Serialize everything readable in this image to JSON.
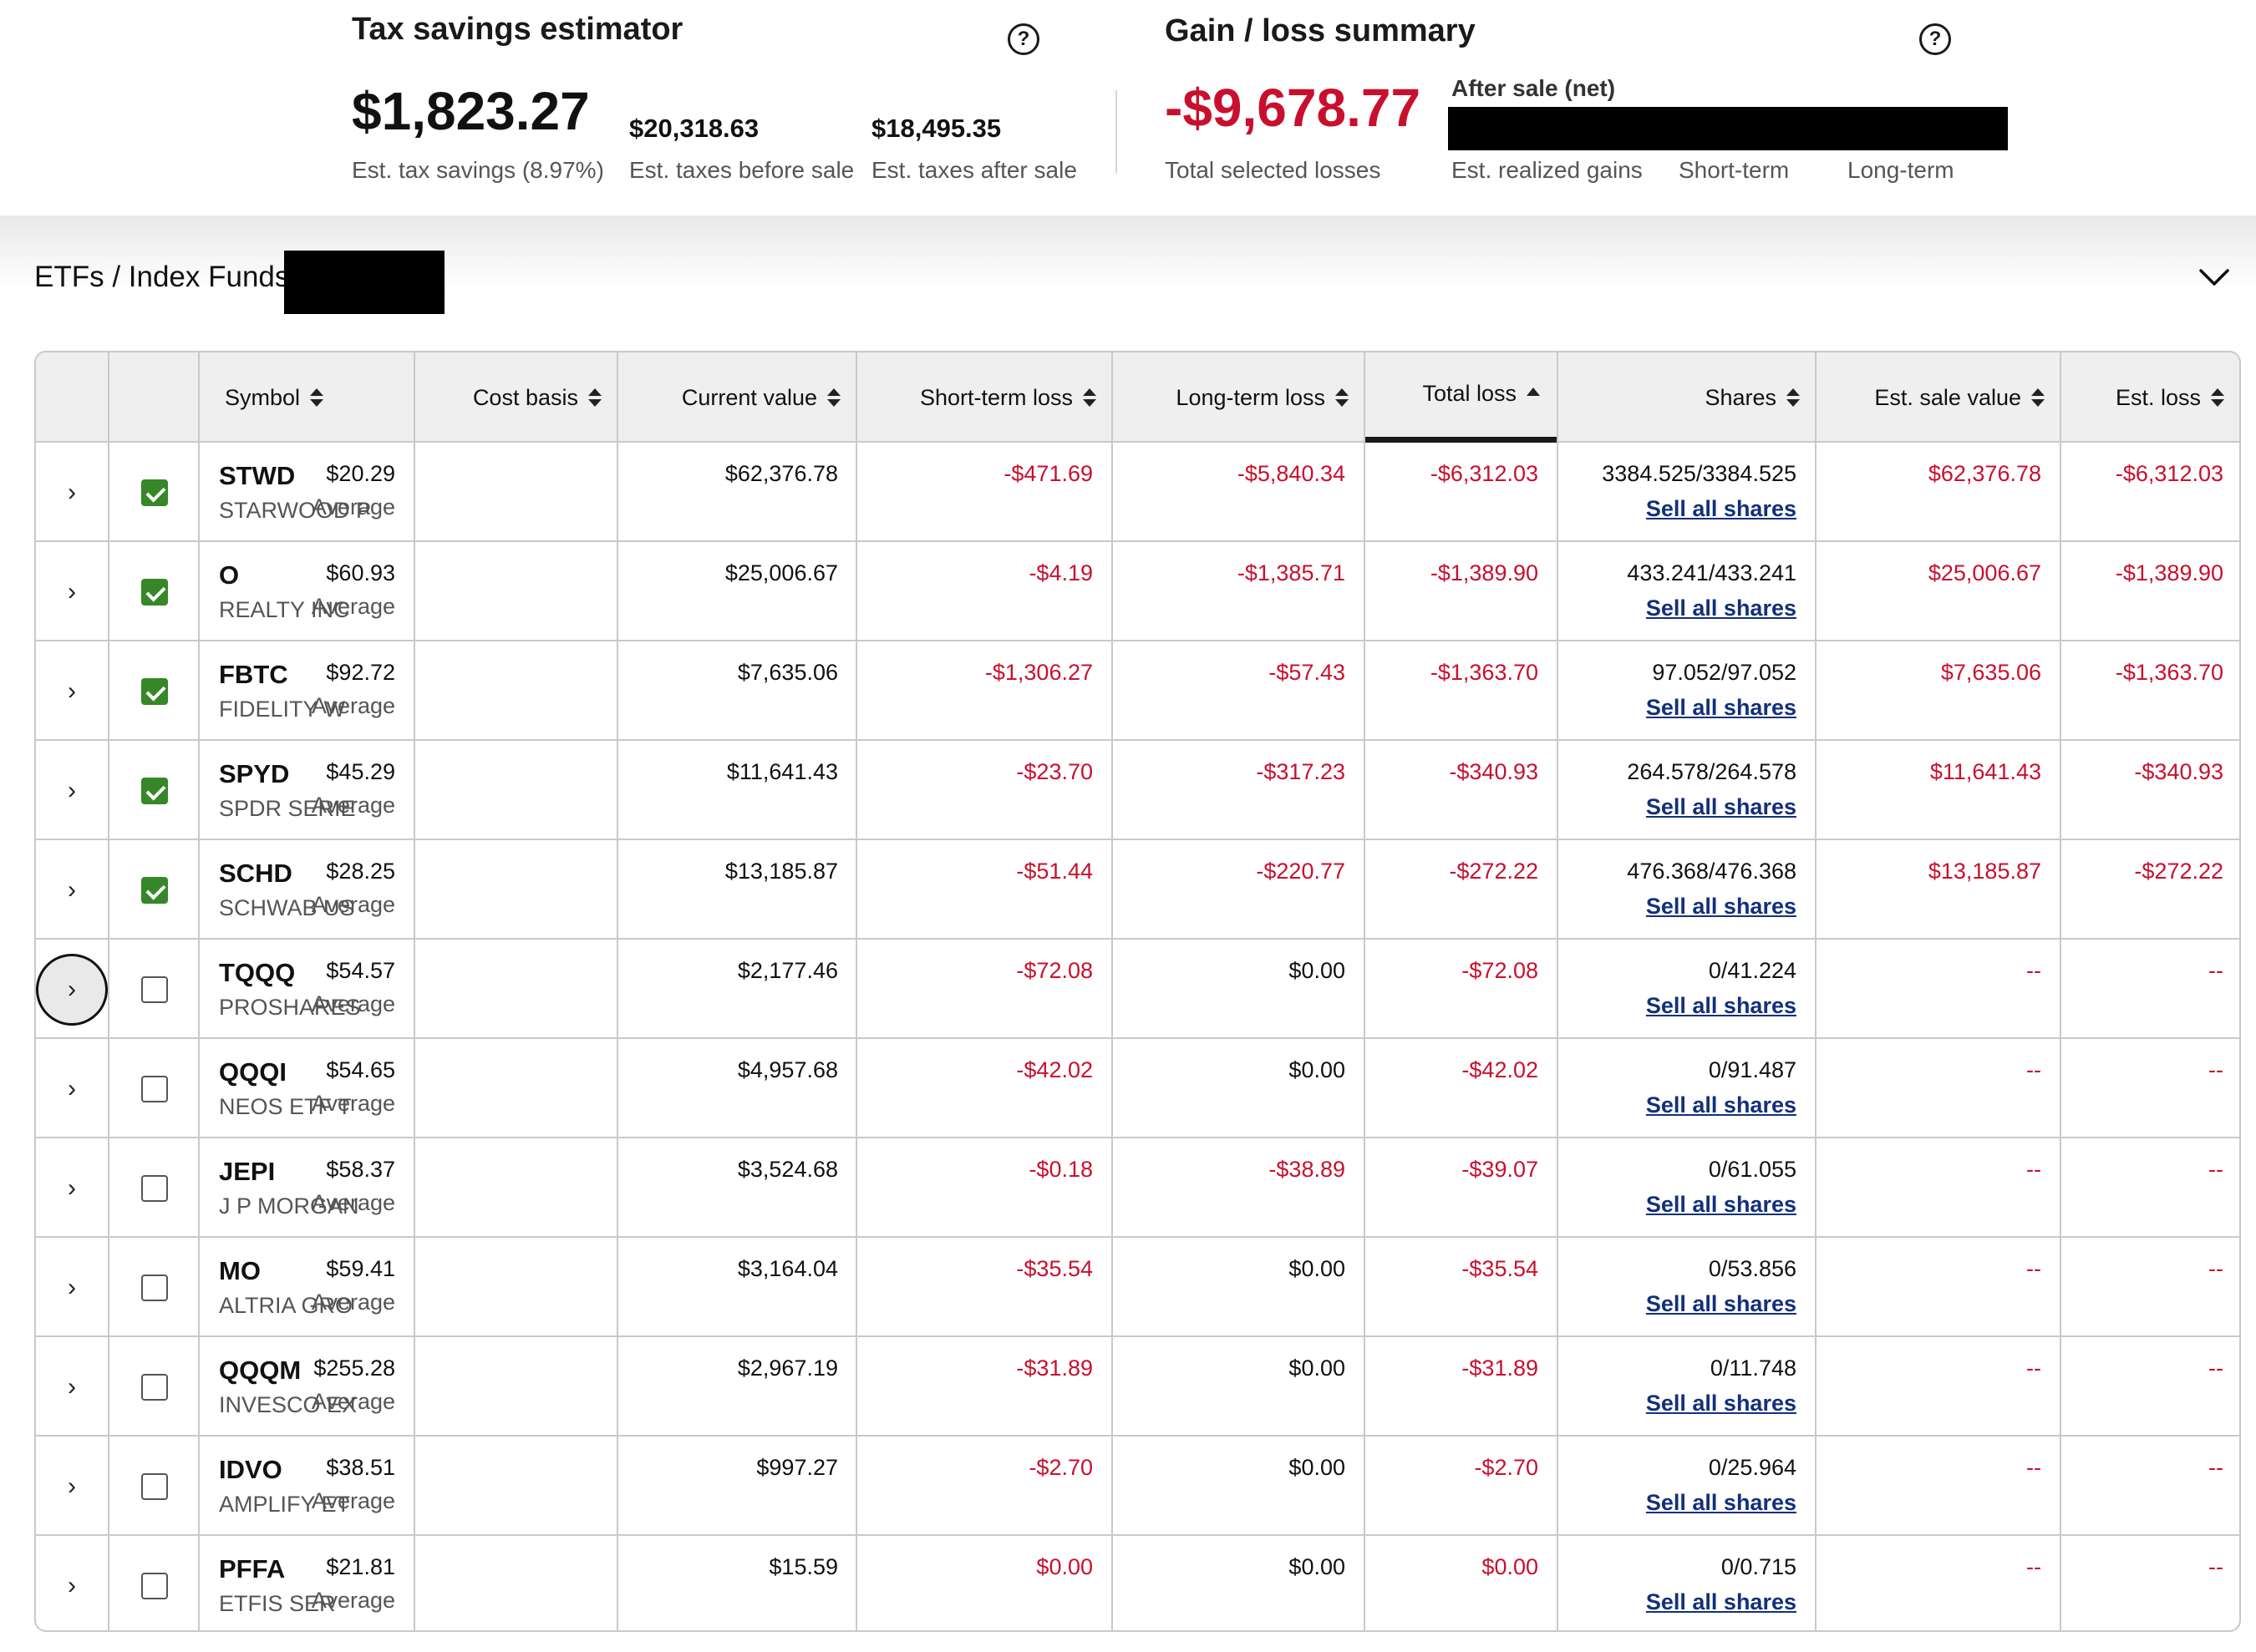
{
  "tax_estimator": {
    "title": "Tax savings estimator",
    "savings_value": "$1,823.27",
    "savings_label": "Est. tax savings (8.97%)",
    "before_value": "$20,318.63",
    "before_label": "Est. taxes before sale",
    "after_value": "$18,495.35",
    "after_label": "Est. taxes after sale"
  },
  "gain_loss": {
    "title": "Gain / loss summary",
    "total_value": "-$9,678.77",
    "total_label": "Total selected losses",
    "after_sale_label": "After sale (net)",
    "realized_label": "Est. realized gains",
    "short_term_label": "Short-term",
    "long_term_label": "Long-term"
  },
  "section": {
    "title": "ETFs / Index Funds"
  },
  "table": {
    "headers": {
      "symbol": "Symbol",
      "cost_basis": "Cost basis",
      "current_value": "Current value",
      "short_term_loss": "Short-term loss",
      "long_term_loss": "Long-term loss",
      "total_loss": "Total loss",
      "shares": "Shares",
      "est_sale_value": "Est. sale value",
      "est_loss": "Est. loss"
    },
    "rows": [
      {
        "symbol": "STWD",
        "name": "STARWOOD P",
        "checked": true,
        "cost": "$20.29",
        "cost_note": "Average",
        "current": "$62,376.78",
        "st_loss": "-$471.69",
        "lt_loss": "-$5,840.34",
        "total_loss": "-$6,312.03",
        "shares": "3384.525/3384.525",
        "sell": "Sell all shares",
        "sale_value": "$62,376.78",
        "est_loss": "-$6,312.03"
      },
      {
        "symbol": "O",
        "name": "REALTY INC",
        "checked": true,
        "cost": "$60.93",
        "cost_note": "Average",
        "current": "$25,006.67",
        "st_loss": "-$4.19",
        "lt_loss": "-$1,385.71",
        "total_loss": "-$1,389.90",
        "shares": "433.241/433.241",
        "sell": "Sell all shares",
        "sale_value": "$25,006.67",
        "est_loss": "-$1,389.90"
      },
      {
        "symbol": "FBTC",
        "name": "FIDELITY W",
        "checked": true,
        "cost": "$92.72",
        "cost_note": "Average",
        "current": "$7,635.06",
        "st_loss": "-$1,306.27",
        "lt_loss": "-$57.43",
        "total_loss": "-$1,363.70",
        "shares": "97.052/97.052",
        "sell": "Sell all shares",
        "sale_value": "$7,635.06",
        "est_loss": "-$1,363.70"
      },
      {
        "symbol": "SPYD",
        "name": "SPDR SERIE",
        "checked": true,
        "cost": "$45.29",
        "cost_note": "Average",
        "current": "$11,641.43",
        "st_loss": "-$23.70",
        "lt_loss": "-$317.23",
        "total_loss": "-$340.93",
        "shares": "264.578/264.578",
        "sell": "Sell all shares",
        "sale_value": "$11,641.43",
        "est_loss": "-$340.93"
      },
      {
        "symbol": "SCHD",
        "name": "SCHWAB US",
        "checked": true,
        "cost": "$28.25",
        "cost_note": "Average",
        "current": "$13,185.87",
        "st_loss": "-$51.44",
        "lt_loss": "-$220.77",
        "total_loss": "-$272.22",
        "shares": "476.368/476.368",
        "sell": "Sell all shares",
        "sale_value": "$13,185.87",
        "est_loss": "-$272.22"
      },
      {
        "symbol": "TQQQ",
        "name": "PROSHARES",
        "checked": false,
        "focused": true,
        "cost": "$54.57",
        "cost_note": "Average",
        "current": "$2,177.46",
        "st_loss": "-$72.08",
        "lt_loss": "$0.00",
        "total_loss": "-$72.08",
        "shares": "0/41.224",
        "sell": "Sell all shares",
        "sale_value": "--",
        "est_loss": "--"
      },
      {
        "symbol": "QQQI",
        "name": "NEOS ETF T",
        "checked": false,
        "cost": "$54.65",
        "cost_note": "Average",
        "current": "$4,957.68",
        "st_loss": "-$42.02",
        "lt_loss": "$0.00",
        "total_loss": "-$42.02",
        "shares": "0/91.487",
        "sell": "Sell all shares",
        "sale_value": "--",
        "est_loss": "--"
      },
      {
        "symbol": "JEPI",
        "name": "J P MORGAN",
        "checked": false,
        "cost": "$58.37",
        "cost_note": "Average",
        "current": "$3,524.68",
        "st_loss": "-$0.18",
        "lt_loss": "-$38.89",
        "total_loss": "-$39.07",
        "shares": "0/61.055",
        "sell": "Sell all shares",
        "sale_value": "--",
        "est_loss": "--"
      },
      {
        "symbol": "MO",
        "name": "ALTRIA GRO",
        "checked": false,
        "cost": "$59.41",
        "cost_note": "Average",
        "current": "$3,164.04",
        "st_loss": "-$35.54",
        "lt_loss": "$0.00",
        "total_loss": "-$35.54",
        "shares": "0/53.856",
        "sell": "Sell all shares",
        "sale_value": "--",
        "est_loss": "--"
      },
      {
        "symbol": "QQQM",
        "name": "INVESCO EX",
        "checked": false,
        "cost": "$255.28",
        "cost_note": "Average",
        "current": "$2,967.19",
        "st_loss": "-$31.89",
        "lt_loss": "$0.00",
        "total_loss": "-$31.89",
        "shares": "0/11.748",
        "sell": "Sell all shares",
        "sale_value": "--",
        "est_loss": "--"
      },
      {
        "symbol": "IDVO",
        "name": "AMPLIFY ET",
        "checked": false,
        "cost": "$38.51",
        "cost_note": "Average",
        "current": "$997.27",
        "st_loss": "-$2.70",
        "lt_loss": "$0.00",
        "total_loss": "-$2.70",
        "shares": "0/25.964",
        "sell": "Sell all shares",
        "sale_value": "--",
        "est_loss": "--"
      },
      {
        "symbol": "PFFA",
        "name": "ETFIS SER",
        "checked": false,
        "cost": "$21.81",
        "cost_note": "Average",
        "current": "$15.59",
        "st_loss": "$0.00",
        "lt_loss": "$0.00",
        "total_loss": "$0.00",
        "shares": "0/0.715",
        "sell": "Sell all shares",
        "sale_value": "--",
        "est_loss": "--"
      }
    ]
  },
  "colors": {
    "loss_red": "#c8102e",
    "link_blue": "#13307a",
    "check_green": "#368727"
  }
}
